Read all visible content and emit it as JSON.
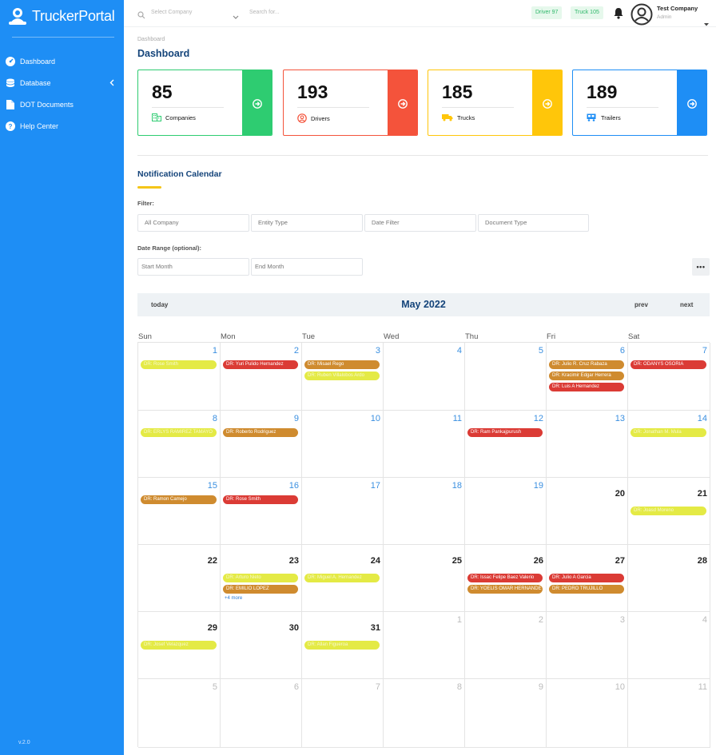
{
  "sidebar": {
    "logo_text": "TruckerPortal",
    "items": [
      {
        "label": "Dashboard",
        "icon": "dashboard-icon"
      },
      {
        "label": "Database",
        "icon": "database-icon"
      },
      {
        "label": "DOT Documents",
        "icon": "document-icon"
      },
      {
        "label": "Help Center",
        "icon": "help-icon"
      }
    ],
    "version": "v.2.0"
  },
  "topbar": {
    "company_placeholder": "Select Company",
    "search_placeholder": "Search for...",
    "driver_badge": "Driver 97",
    "truck_badge": "Truck 105",
    "user_name": "Test Company",
    "user_role": "Admin"
  },
  "breadcrumb": "Dashboard",
  "page_title": "Dashboard",
  "cards": [
    {
      "count": "85",
      "label": "Companies",
      "icon": "building-icon",
      "color": "#2ecc71"
    },
    {
      "count": "193",
      "label": "Drivers",
      "icon": "user-circle-icon",
      "color": "#f4533b"
    },
    {
      "count": "185",
      "label": "Trucks",
      "icon": "truck-icon",
      "color": "#ffc60a"
    },
    {
      "count": "189",
      "label": "Trailers",
      "icon": "trailer-icon",
      "color": "#1e8ef5"
    }
  ],
  "calendar_section": {
    "title": "Notification Calendar",
    "filter_label": "Filter:",
    "filters": [
      "All Company",
      "Entity Type",
      "Date Filter",
      "Document Type"
    ],
    "date_range_label": "Date Range (optional):",
    "date_range": [
      "Start Month",
      "End Month"
    ],
    "more_button": "•••"
  },
  "calendar": {
    "today_label": "today",
    "month_title": "May 2022",
    "prev_label": "prev",
    "next_label": "next",
    "weekdays": [
      "Sun",
      "Mon",
      "Tue",
      "Wed",
      "Thu",
      "Fri",
      "Sat"
    ],
    "weeks": [
      [
        {
          "day": "1",
          "events": [
            {
              "t": "DR: Rose Smith",
              "c": "y"
            }
          ]
        },
        {
          "day": "2",
          "events": [
            {
              "t": "DR: Yuri Pulido Hernandez",
              "c": "r"
            }
          ]
        },
        {
          "day": "3",
          "events": [
            {
              "t": "DR: Misael Rego",
              "c": "o"
            },
            {
              "t": "DR: Ruben Villalobos Ardo",
              "c": "y"
            }
          ]
        },
        {
          "day": "4",
          "events": []
        },
        {
          "day": "5",
          "events": []
        },
        {
          "day": "6",
          "events": [
            {
              "t": "DR: Julio R. Cruz Rabaza",
              "c": "o"
            },
            {
              "t": "DR: Kracimir Edgar Herrera",
              "c": "o"
            },
            {
              "t": "DR: Luis A Hernandez",
              "c": "r"
            }
          ]
        },
        {
          "day": "7",
          "events": [
            {
              "t": "DR: ODANYS OSORIA",
              "c": "r"
            }
          ]
        }
      ],
      [
        {
          "day": "8",
          "events": [
            {
              "t": "DR: ERLYS RAMIREZ TAMAYO",
              "c": "y"
            }
          ]
        },
        {
          "day": "9",
          "events": [
            {
              "t": "DR: Roberto Rodriguez",
              "c": "o"
            }
          ]
        },
        {
          "day": "10",
          "events": []
        },
        {
          "day": "11",
          "events": []
        },
        {
          "day": "12",
          "events": [
            {
              "t": "DR: Ram Pankajpurush",
              "c": "r"
            }
          ]
        },
        {
          "day": "13",
          "events": []
        },
        {
          "day": "14",
          "events": [
            {
              "t": "DR: Jonathan M. Mula",
              "c": "y"
            }
          ]
        }
      ],
      [
        {
          "day": "15",
          "events": [
            {
              "t": "DR: Ramon Camejo",
              "c": "o"
            }
          ]
        },
        {
          "day": "16",
          "events": [
            {
              "t": "DR: Rose Smith",
              "c": "r"
            }
          ]
        },
        {
          "day": "17",
          "events": []
        },
        {
          "day": "18",
          "events": []
        },
        {
          "day": "19",
          "events": []
        },
        {
          "day": "20",
          "events": []
        },
        {
          "day": "21",
          "events": [
            {
              "t": "DR: Joasd Moreno",
              "c": "y"
            }
          ]
        }
      ],
      [
        {
          "day": "22",
          "events": []
        },
        {
          "day": "23",
          "events": [
            {
              "t": "DR: Arturo Nieto",
              "c": "y"
            },
            {
              "t": "DR: EMILIO LOPEZ",
              "c": "o"
            }
          ],
          "more": "+4 more"
        },
        {
          "day": "24",
          "events": [
            {
              "t": "DR: Miguel A. Hernandez",
              "c": "y"
            }
          ]
        },
        {
          "day": "25",
          "events": []
        },
        {
          "day": "26",
          "events": [
            {
              "t": "DR: Issac Felipe Baez Valerio",
              "c": "r"
            },
            {
              "t": "DR: YOELIS OMAR HERNANDE",
              "c": "o"
            }
          ]
        },
        {
          "day": "27",
          "events": [
            {
              "t": "DR: Julio A Garcia",
              "c": "r"
            },
            {
              "t": "DR: PEDRO TRUJILLO",
              "c": "o"
            }
          ]
        },
        {
          "day": "28",
          "events": []
        }
      ],
      [
        {
          "day": "29",
          "events": [
            {
              "t": "DR: Josef Velazquez",
              "c": "y"
            }
          ]
        },
        {
          "day": "30",
          "events": []
        },
        {
          "day": "31",
          "events": [
            {
              "t": "DR: Allan Figueroa",
              "c": "y"
            }
          ]
        },
        {
          "day": "1",
          "events": []
        },
        {
          "day": "2",
          "events": []
        },
        {
          "day": "3",
          "events": []
        },
        {
          "day": "4",
          "events": []
        }
      ],
      [
        {
          "day": "5",
          "events": []
        },
        {
          "day": "6",
          "events": []
        },
        {
          "day": "7",
          "events": []
        },
        {
          "day": "8",
          "events": []
        },
        {
          "day": "9",
          "events": []
        },
        {
          "day": "10",
          "events": []
        },
        {
          "day": "11",
          "events": []
        }
      ]
    ]
  },
  "colors": {
    "sidebar": "#1e8ef5",
    "title": "#14447a",
    "event_yellow": "#e4ea45",
    "event_orange": "#cf8b2f",
    "event_red": "#db3b35",
    "day_blue": "#3a8fe0"
  }
}
